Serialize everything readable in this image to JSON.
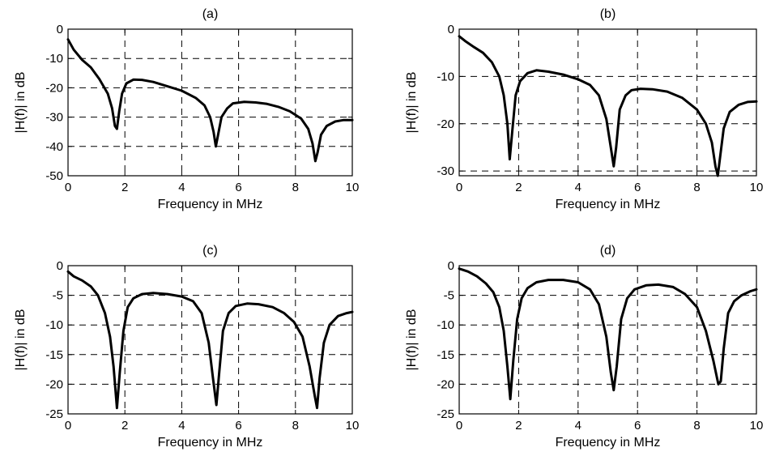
{
  "chart_data": [
    {
      "type": "line",
      "title": "(a)",
      "xlabel": "Frequency in MHz",
      "ylabel": "|H(f)| in dB",
      "xlim": [
        0,
        10
      ],
      "ylim": [
        -50,
        0
      ],
      "xticks": [
        "0",
        "2",
        "4",
        "6",
        "8",
        "10"
      ],
      "yticks": [
        "0",
        "-10",
        "-20",
        "-30",
        "-40",
        "-50"
      ],
      "grid": true,
      "series": [
        {
          "x": [
            0,
            0.2,
            0.5,
            0.8,
            1.1,
            1.4,
            1.55,
            1.65,
            1.72,
            1.8,
            1.9,
            2.05,
            2.3,
            2.6,
            3.0,
            3.5,
            4.0,
            4.5,
            4.8,
            5.0,
            5.12,
            5.2,
            5.28,
            5.4,
            5.6,
            5.8,
            6.2,
            6.6,
            7.0,
            7.4,
            7.8,
            8.2,
            8.45,
            8.6,
            8.7,
            8.78,
            8.9,
            9.1,
            9.4,
            9.7,
            10
          ],
          "values": [
            -3.5,
            -7,
            -10.5,
            -13,
            -17,
            -22,
            -27,
            -33,
            -34,
            -28,
            -22,
            -18.5,
            -17.2,
            -17.3,
            -18,
            -19.5,
            -21,
            -23.5,
            -26,
            -30,
            -35,
            -40,
            -36,
            -30,
            -27,
            -25.3,
            -24.8,
            -25,
            -25.5,
            -26.5,
            -28,
            -30.5,
            -34,
            -39,
            -45,
            -42,
            -36,
            -33,
            -31.5,
            -31,
            -31
          ]
        }
      ]
    },
    {
      "type": "line",
      "title": "(b)",
      "xlabel": "Frequency in MHz",
      "ylabel": "|H(f)| in dB",
      "xlim": [
        0,
        10
      ],
      "ylim": [
        -31,
        0
      ],
      "xticks": [
        "0",
        "2",
        "4",
        "6",
        "8",
        "10"
      ],
      "yticks": [
        "0",
        "-10",
        "-20",
        "-30"
      ],
      "grid": true,
      "series": [
        {
          "x": [
            0,
            0.2,
            0.5,
            0.8,
            1.1,
            1.35,
            1.5,
            1.62,
            1.7,
            1.78,
            1.9,
            2.05,
            2.3,
            2.6,
            3.0,
            3.5,
            4.0,
            4.4,
            4.7,
            4.95,
            5.1,
            5.2,
            5.28,
            5.4,
            5.6,
            5.8,
            6.1,
            6.5,
            7.0,
            7.5,
            8.0,
            8.3,
            8.5,
            8.62,
            8.7,
            8.78,
            8.9,
            9.1,
            9.4,
            9.7,
            10
          ],
          "values": [
            -1.5,
            -2.5,
            -3.8,
            -5,
            -7,
            -10,
            -14,
            -20,
            -27.5,
            -22,
            -14,
            -11,
            -9.3,
            -8.7,
            -9,
            -9.6,
            -10.6,
            -11.8,
            -14,
            -19,
            -25,
            -29,
            -25,
            -17,
            -14,
            -12.9,
            -12.6,
            -12.7,
            -13.2,
            -14.5,
            -17,
            -20,
            -24,
            -29,
            -31,
            -27,
            -21,
            -17.5,
            -16,
            -15.4,
            -15.3
          ]
        }
      ]
    },
    {
      "type": "line",
      "title": "(c)",
      "xlabel": "Frequency in MHz",
      "ylabel": "|H(f)| in dB",
      "xlim": [
        0,
        10
      ],
      "ylim": [
        -25,
        0
      ],
      "xticks": [
        "0",
        "2",
        "4",
        "6",
        "8",
        "10"
      ],
      "yticks": [
        "0",
        "-5",
        "-10",
        "-15",
        "-20",
        "-25"
      ],
      "grid": true,
      "series": [
        {
          "x": [
            0,
            0.2,
            0.5,
            0.8,
            1.05,
            1.3,
            1.48,
            1.6,
            1.72,
            1.82,
            1.95,
            2.1,
            2.3,
            2.6,
            3.0,
            3.5,
            4.0,
            4.4,
            4.7,
            4.95,
            5.1,
            5.22,
            5.32,
            5.45,
            5.65,
            5.9,
            6.3,
            6.7,
            7.2,
            7.6,
            7.95,
            8.25,
            8.5,
            8.68,
            8.76,
            8.85,
            9.0,
            9.2,
            9.5,
            9.8,
            10
          ],
          "values": [
            -1,
            -1.8,
            -2.5,
            -3.5,
            -5,
            -8,
            -12,
            -17,
            -24,
            -18,
            -11,
            -7,
            -5.5,
            -4.8,
            -4.6,
            -4.8,
            -5.2,
            -6,
            -8,
            -13,
            -19,
            -23.5,
            -18,
            -11,
            -8,
            -6.8,
            -6.4,
            -6.5,
            -7,
            -8,
            -9.5,
            -12,
            -17,
            -22,
            -24,
            -19,
            -13,
            -10,
            -8.5,
            -8,
            -7.8
          ]
        }
      ]
    },
    {
      "type": "line",
      "title": "(d)",
      "xlabel": "Frequency in MHz",
      "ylabel": "|H(f)| in dB",
      "xlim": [
        0,
        10
      ],
      "ylim": [
        -25,
        0
      ],
      "xticks": [
        "0",
        "2",
        "4",
        "6",
        "8",
        "10"
      ],
      "yticks": [
        "0",
        "-5",
        "-10",
        "-15",
        "-20",
        "-25"
      ],
      "grid": true,
      "series": [
        {
          "x": [
            0,
            0.3,
            0.6,
            0.9,
            1.15,
            1.35,
            1.5,
            1.62,
            1.72,
            1.82,
            1.95,
            2.1,
            2.3,
            2.6,
            3.0,
            3.5,
            4.0,
            4.4,
            4.7,
            4.95,
            5.1,
            5.2,
            5.3,
            5.45,
            5.65,
            5.9,
            6.3,
            6.7,
            7.2,
            7.6,
            8.0,
            8.3,
            8.55,
            8.72,
            8.8,
            8.9,
            9.05,
            9.25,
            9.5,
            9.8,
            10
          ],
          "values": [
            -0.5,
            -1,
            -1.8,
            -3,
            -4.5,
            -7,
            -11,
            -17,
            -22.5,
            -16,
            -9,
            -5.5,
            -3.8,
            -2.8,
            -2.4,
            -2.4,
            -2.8,
            -4,
            -6.5,
            -12,
            -18,
            -21,
            -17,
            -9,
            -5.5,
            -4,
            -3.3,
            -3.2,
            -3.6,
            -4.8,
            -7,
            -11,
            -16,
            -20,
            -19.5,
            -14,
            -8,
            -6,
            -5,
            -4.3,
            -4
          ]
        }
      ]
    }
  ]
}
